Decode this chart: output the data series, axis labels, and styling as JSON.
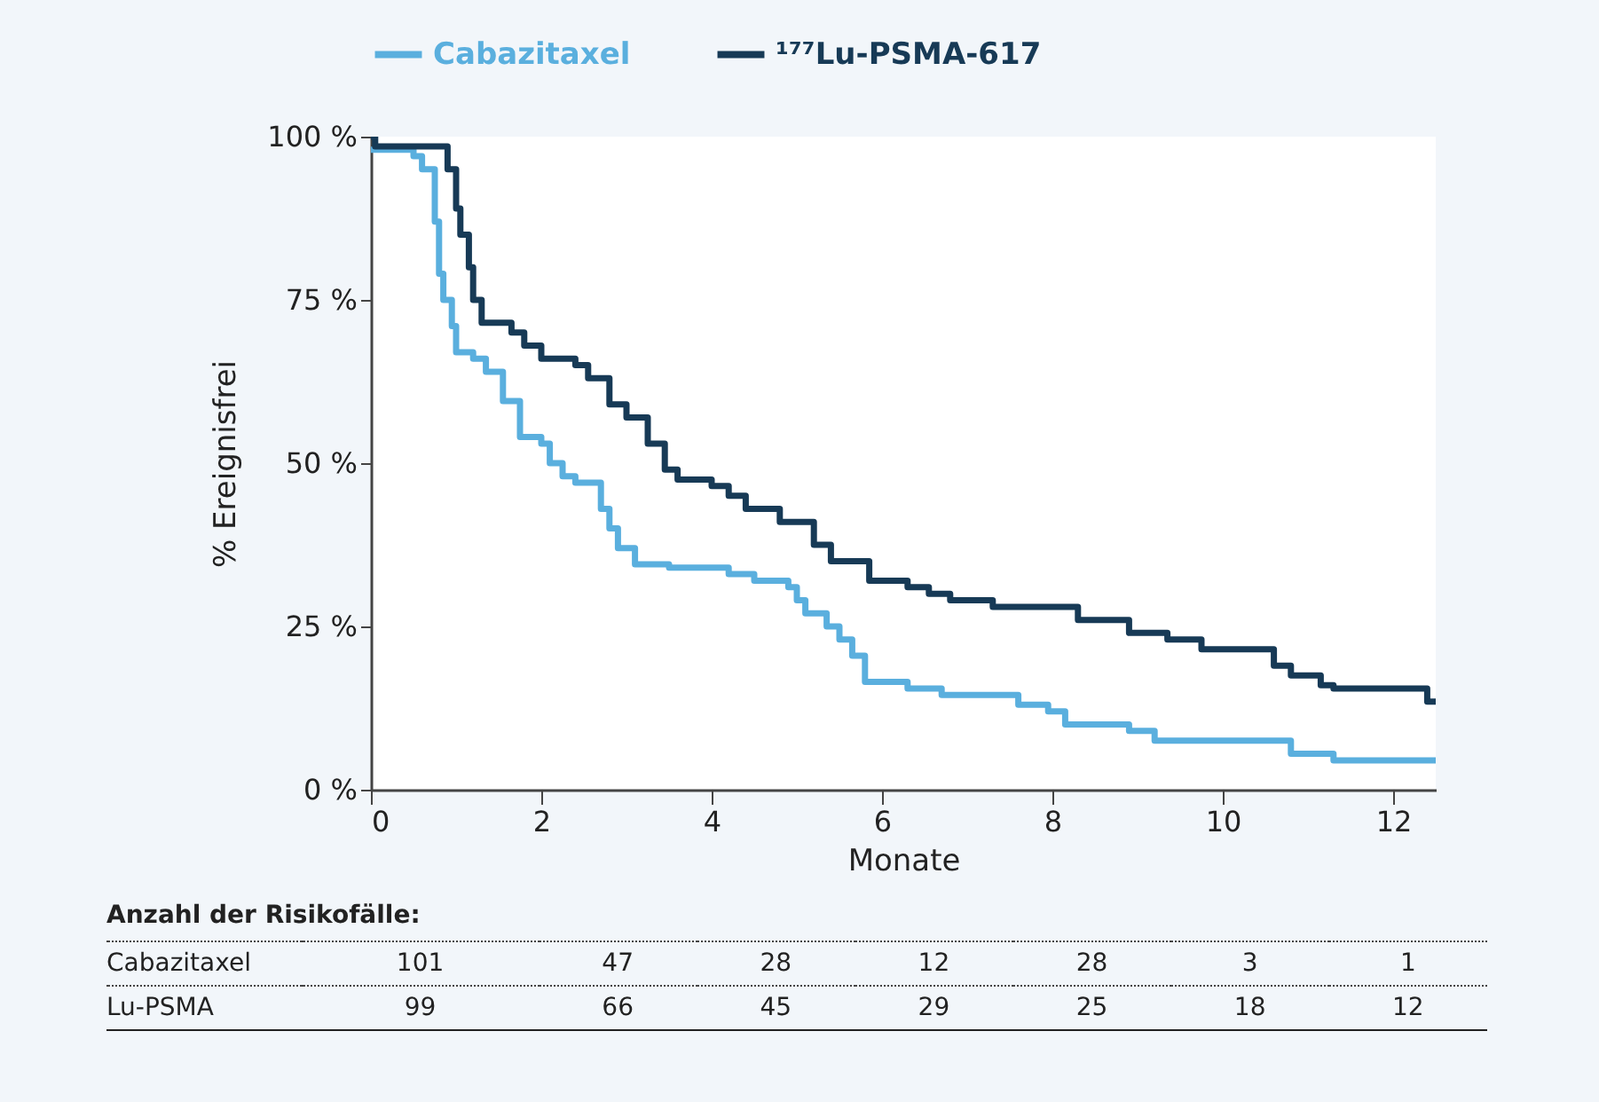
{
  "chart_data": {
    "type": "step",
    "xlabel": "Monate",
    "ylabel": "% Ereignisfrei",
    "xlim": [
      0,
      12.5
    ],
    "xticks": [
      0,
      2,
      4,
      6,
      8,
      10,
      12
    ],
    "ylim": [
      0,
      100
    ],
    "yticks": [
      {
        "value": 0,
        "label": "0 %"
      },
      {
        "value": 25,
        "label": "25 %"
      },
      {
        "value": 50,
        "label": "50 %"
      },
      {
        "value": 75,
        "label": "75 %"
      },
      {
        "value": 100,
        "label": "100 %"
      }
    ],
    "grid": false,
    "legend": "top",
    "marker": "none",
    "line_style": "solid",
    "series": [
      {
        "name": "Cabazitaxel",
        "color": "#5aafde",
        "x": [
          0,
          0.5,
          0.6,
          0.75,
          0.8,
          0.85,
          0.95,
          1.0,
          1.2,
          1.35,
          1.55,
          1.75,
          2.0,
          2.1,
          2.25,
          2.4,
          2.7,
          2.8,
          2.9,
          3.1,
          3.5,
          4.2,
          4.5,
          4.9,
          5.0,
          5.1,
          5.35,
          5.5,
          5.65,
          5.8,
          6.3,
          6.7,
          7.6,
          7.95,
          8.15,
          8.9,
          9.2,
          10.8,
          11.3,
          12.5
        ],
        "values": [
          98,
          97,
          95,
          87,
          79,
          75,
          71,
          67,
          66,
          64,
          59.5,
          54,
          53,
          50,
          48,
          47,
          43,
          40,
          37,
          34.5,
          34,
          33,
          32,
          31,
          29,
          27,
          25,
          23,
          20.5,
          16.5,
          15.5,
          14.5,
          13,
          12,
          10,
          9,
          7.5,
          5.5,
          4.5,
          4.5
        ]
      },
      {
        "name": "¹⁷⁷Lu-PSMA-617",
        "color": "#173a56",
        "x": [
          0,
          0.05,
          0.75,
          0.9,
          1.0,
          1.05,
          1.15,
          1.2,
          1.3,
          1.65,
          1.8,
          2.0,
          2.4,
          2.55,
          2.8,
          3.0,
          3.25,
          3.45,
          3.6,
          4.0,
          4.2,
          4.4,
          4.8,
          5.2,
          5.4,
          5.85,
          6.3,
          6.55,
          6.8,
          7.3,
          8.3,
          8.9,
          9.35,
          9.75,
          10.6,
          10.8,
          11.15,
          11.3,
          12.4,
          12.5
        ],
        "values": [
          100,
          98.5,
          98.5,
          95,
          89,
          85,
          80,
          75,
          71.5,
          70,
          68,
          66,
          65,
          63,
          59,
          57,
          53,
          49,
          47.5,
          46.5,
          45,
          43,
          41,
          37.5,
          35,
          32,
          31,
          30,
          29,
          28,
          26,
          24,
          23,
          21.5,
          19,
          17.5,
          16,
          15.5,
          13.5,
          13.5
        ]
      }
    ],
    "annotations": [
      "Anzahl der Risikofälle:",
      "Cabazitaxel",
      "101",
      "47",
      "28",
      "12",
      "28",
      "3",
      "1",
      "Lu-PSMA",
      "99",
      "66",
      "45",
      "29",
      "25",
      "18",
      "12"
    ]
  }
}
